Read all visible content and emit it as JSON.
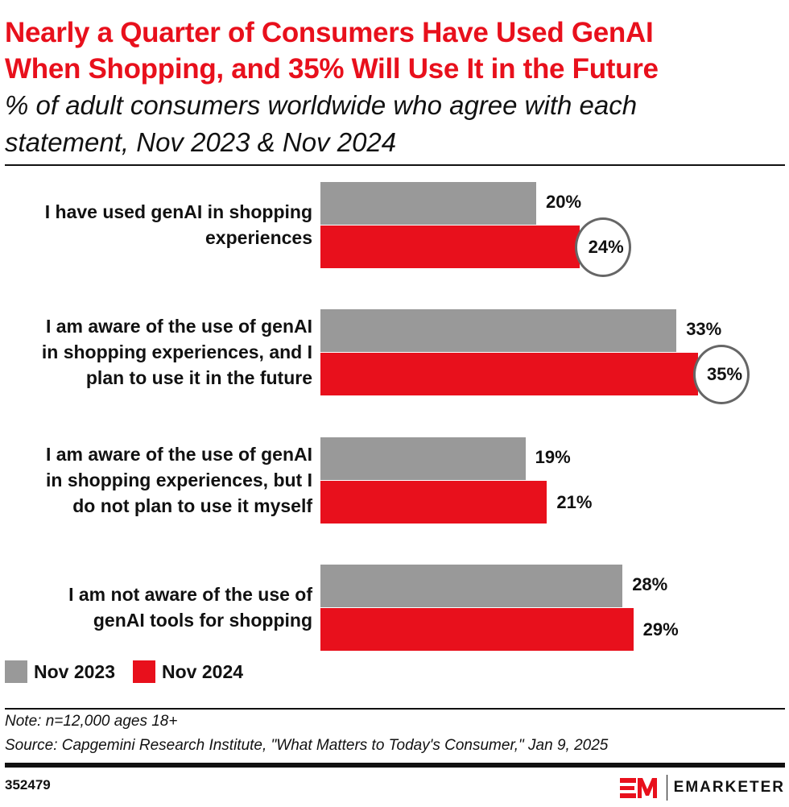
{
  "title": [
    "Nearly a Quarter of Consumers Have Used GenAI",
    "When Shopping, and 35% Will Use It in the Future"
  ],
  "subtitle": [
    "% of adult consumers worldwide who agree with each",
    "statement, Nov 2023 & Nov 2024"
  ],
  "colors": {
    "nov2023": "#999999",
    "nov2024": "#e8101c",
    "title": "#e8101c",
    "circle": "#666666"
  },
  "chart_data": {
    "type": "bar",
    "orientation": "horizontal",
    "categories": [
      [
        "I have used genAI in shopping",
        "experiences"
      ],
      [
        "I am aware of the use of genAI",
        "in shopping experiences, and I",
        "plan to use it in the future"
      ],
      [
        "I am aware of the use of genAI",
        "in shopping experiences, but I",
        "do not plan to use it myself"
      ],
      [
        "I am not aware of the use of",
        "genAI tools for shopping"
      ]
    ],
    "series": [
      {
        "name": "Nov 2023",
        "values": [
          20,
          33,
          19,
          28
        ],
        "labels": [
          "20%",
          "33%",
          "19%",
          "28%"
        ]
      },
      {
        "name": "Nov 2024",
        "values": [
          24,
          35,
          21,
          29
        ],
        "labels": [
          "24%",
          "35%",
          "21%",
          "29%"
        ]
      }
    ],
    "highlighted": {
      "series": "Nov 2024",
      "categories": [
        0,
        1
      ]
    },
    "legend": "bottom-left",
    "grid": false
  },
  "footer": {
    "note": "Note: n=12,000 ages 18+",
    "source": "Source: Capgemini Research Institute, \"What Matters to Today's Consumer,\" Jan 9, 2025",
    "id": "352479",
    "logo": "EMARKETER"
  }
}
